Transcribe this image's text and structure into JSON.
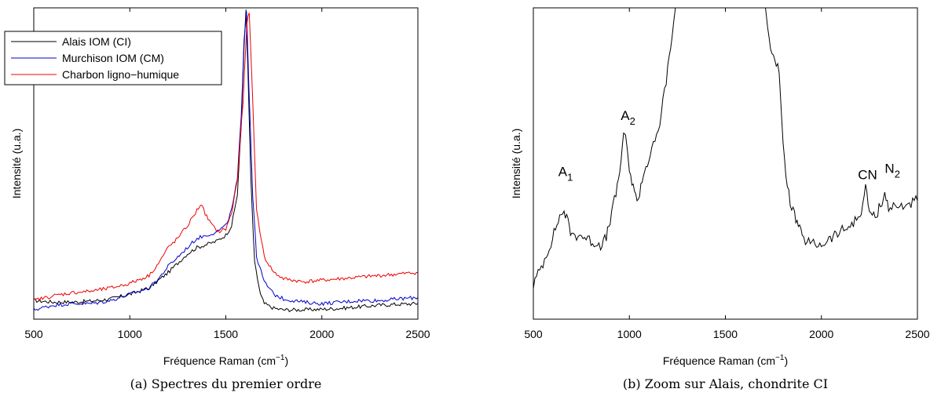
{
  "chart_data": [
    {
      "type": "line",
      "caption": "(a) Spectres du premier ordre",
      "xlabel": "Fréquence Raman (cm",
      "xlabel_sup": "−1",
      "xlabel_end": ")",
      "ylabel": "Intensité (u.a.)",
      "xlim": [
        500,
        2500
      ],
      "ylim": [
        0,
        1
      ],
      "xticks": [
        500,
        1000,
        1500,
        2000,
        2500
      ],
      "legend_position": "top-left",
      "series": [
        {
          "name": "Alais IOM (CI)",
          "color": "#000000",
          "x": [
            500,
            600,
            700,
            800,
            900,
            1000,
            1100,
            1200,
            1250,
            1300,
            1350,
            1400,
            1450,
            1500,
            1530,
            1560,
            1580,
            1595,
            1605,
            1615,
            1630,
            1650,
            1680,
            1700,
            1750,
            1800,
            1900,
            2000,
            2100,
            2200,
            2300,
            2400,
            2500
          ],
          "y": [
            0.06,
            0.055,
            0.055,
            0.058,
            0.065,
            0.08,
            0.1,
            0.15,
            0.18,
            0.21,
            0.23,
            0.24,
            0.25,
            0.27,
            0.3,
            0.4,
            0.62,
            0.88,
            0.99,
            0.8,
            0.45,
            0.18,
            0.08,
            0.05,
            0.035,
            0.03,
            0.03,
            0.032,
            0.035,
            0.04,
            0.045,
            0.048,
            0.05
          ]
        },
        {
          "name": "Murchison IOM (CM)",
          "color": "#0000cc",
          "x": [
            500,
            600,
            700,
            800,
            900,
            1000,
            1100,
            1150,
            1200,
            1250,
            1300,
            1350,
            1400,
            1450,
            1500,
            1530,
            1560,
            1580,
            1595,
            1608,
            1620,
            1640,
            1660,
            1700,
            1750,
            1800,
            1900,
            2000,
            2100,
            2200,
            2300,
            2400,
            2500
          ],
          "y": [
            0.03,
            0.045,
            0.05,
            0.05,
            0.06,
            0.08,
            0.1,
            0.13,
            0.17,
            0.2,
            0.23,
            0.26,
            0.27,
            0.28,
            0.3,
            0.35,
            0.45,
            0.65,
            0.9,
            0.99,
            0.75,
            0.4,
            0.2,
            0.12,
            0.08,
            0.065,
            0.055,
            0.05,
            0.055,
            0.06,
            0.06,
            0.065,
            0.07
          ]
        },
        {
          "name": "Charbon ligno−humique",
          "color": "#ee0000",
          "x": [
            500,
            600,
            700,
            800,
            900,
            1000,
            1100,
            1150,
            1200,
            1250,
            1300,
            1350,
            1370,
            1400,
            1430,
            1460,
            1500,
            1530,
            1560,
            1590,
            1610,
            1622,
            1640,
            1660,
            1700,
            1750,
            1800,
            1900,
            2000,
            2100,
            2200,
            2300,
            2400,
            2500
          ],
          "y": [
            0.06,
            0.075,
            0.085,
            0.09,
            0.1,
            0.115,
            0.14,
            0.18,
            0.23,
            0.26,
            0.3,
            0.35,
            0.37,
            0.33,
            0.3,
            0.28,
            0.29,
            0.34,
            0.45,
            0.7,
            0.95,
            0.99,
            0.7,
            0.35,
            0.2,
            0.15,
            0.13,
            0.12,
            0.125,
            0.13,
            0.135,
            0.14,
            0.145,
            0.15
          ]
        }
      ]
    },
    {
      "type": "line",
      "caption": "(b) Zoom sur Alais, chondrite CI",
      "xlabel": "Fréquence Raman (cm",
      "xlabel_sup": "−1",
      "xlabel_end": ")",
      "ylabel": "Intensité (u.a.)",
      "xlim": [
        500,
        2500
      ],
      "ylim": [
        0,
        1
      ],
      "xticks": [
        500,
        1000,
        1500,
        2000,
        2500
      ],
      "series": [
        {
          "name": "",
          "color": "#000000",
          "x": [
            500,
            550,
            600,
            630,
            660,
            680,
            700,
            750,
            800,
            850,
            880,
            900,
            930,
            950,
            970,
            980,
            990,
            1000,
            1020,
            1040,
            1060,
            1080,
            1100,
            1150,
            1200,
            1230,
            1250,
            1700,
            1720,
            1750,
            1780,
            1800,
            1830,
            1860,
            1880,
            1900,
            1950,
            2000,
            2100,
            2150,
            2200,
            2230,
            2250,
            2280,
            2300,
            2330,
            2350,
            2400,
            2450,
            2500
          ],
          "y": [
            0.11,
            0.18,
            0.26,
            0.32,
            0.35,
            0.31,
            0.27,
            0.27,
            0.25,
            0.24,
            0.26,
            0.32,
            0.4,
            0.48,
            0.58,
            0.6,
            0.54,
            0.46,
            0.44,
            0.37,
            0.43,
            0.48,
            0.51,
            0.6,
            0.8,
            0.95,
            1.05,
            1.05,
            0.92,
            0.85,
            0.8,
            0.55,
            0.4,
            0.33,
            0.3,
            0.26,
            0.24,
            0.24,
            0.28,
            0.3,
            0.33,
            0.42,
            0.35,
            0.32,
            0.36,
            0.4,
            0.36,
            0.36,
            0.37,
            0.38
          ]
        }
      ],
      "annotations": [
        {
          "label": "A",
          "sub": "1",
          "x": 630,
          "y": 0.46
        },
        {
          "label": "A",
          "sub": "2",
          "x": 955,
          "y": 0.64
        },
        {
          "label": "CN",
          "x": 2190,
          "y": 0.45
        },
        {
          "label": "N",
          "sub": "2",
          "x": 2330,
          "y": 0.47
        }
      ]
    }
  ]
}
